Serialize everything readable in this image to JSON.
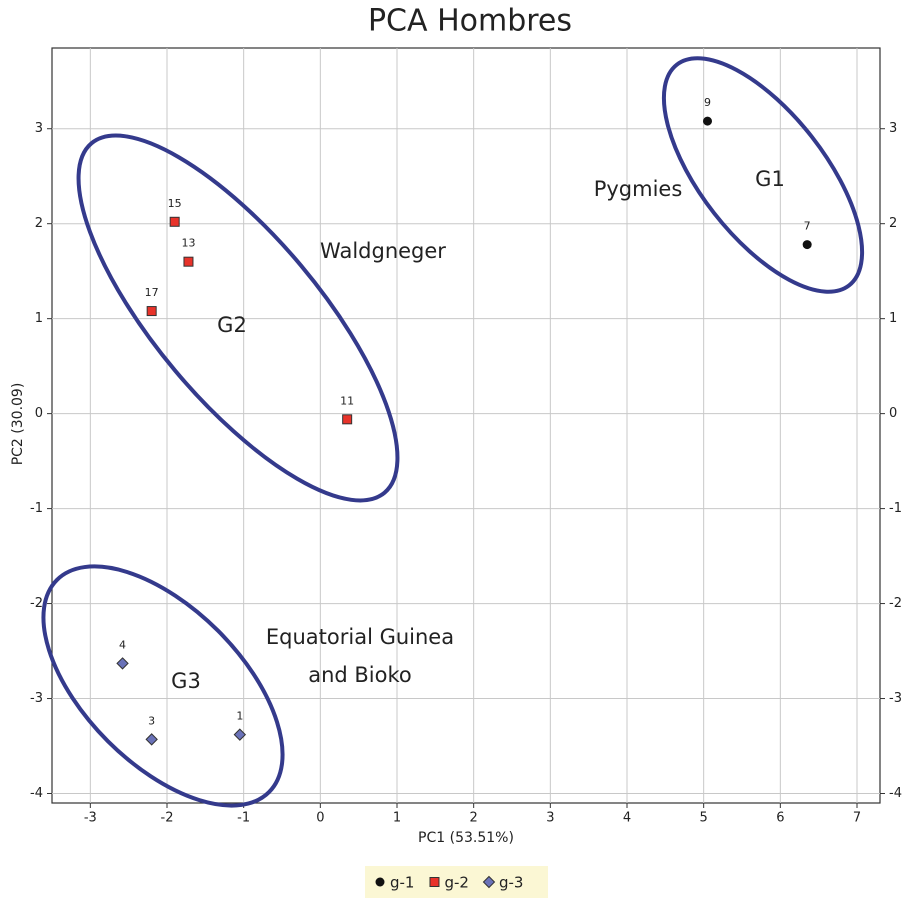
{
  "chart_data": {
    "type": "scatter",
    "title": "PCA Hombres",
    "x_label": "PC1 (53.51%)",
    "y_label": "PC2 (30.09)",
    "xlim": [
      -3.5,
      7.3
    ],
    "ylim": [
      -4.1,
      3.85
    ],
    "xticks": [
      -3,
      -2,
      -1,
      0,
      1,
      2,
      3,
      4,
      5,
      6,
      7
    ],
    "yticks": [
      -4,
      -3,
      -2,
      -1,
      0,
      1,
      2,
      3
    ],
    "grid": true,
    "series": [
      {
        "name": "g-1",
        "marker": "circle",
        "color": "#111111",
        "x": [
          5.05,
          6.35
        ],
        "values": [
          3.08,
          1.78
        ],
        "labels": [
          "9",
          "7"
        ]
      },
      {
        "name": "g-2",
        "marker": "square",
        "color": "#e8332a",
        "x": [
          -1.9,
          -1.72,
          -2.2,
          0.35
        ],
        "values": [
          2.02,
          1.6,
          1.08,
          -0.06
        ],
        "labels": [
          "15",
          "13",
          "17",
          "11"
        ]
      },
      {
        "name": "g-3",
        "marker": "diamond",
        "color": "#6a72b8",
        "x": [
          -2.58,
          -2.2,
          -1.05
        ],
        "values": [
          -2.63,
          -3.43,
          -3.38
        ],
        "labels": [
          "4",
          "3",
          "1"
        ]
      }
    ],
    "annotations": [
      "Pygmies",
      "G1",
      "Waldgneger",
      "G2",
      "Equatorial Guinea",
      "and Bioko",
      "G3"
    ]
  }
}
